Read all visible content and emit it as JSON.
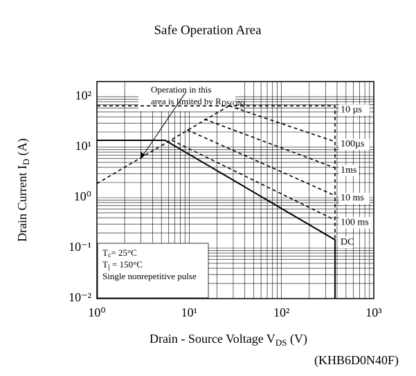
{
  "chart_data": {
    "type": "line",
    "title": "Safe Operation Area",
    "xlabel": [
      "Drain - Source Voltage V",
      "DS",
      " (V)"
    ],
    "ylabel": [
      "Drain Current I",
      "D",
      " (A)"
    ],
    "part_number": "(KHB6D0N40F)",
    "annotation": [
      "Operation in this",
      "area is limited by R",
      "DS(ON)"
    ],
    "notes": [
      [
        "T",
        "c",
        "= 25°C"
      ],
      [
        "T",
        "j",
        " = 150°C"
      ],
      [
        "Single nonrepetitive pulse"
      ]
    ],
    "xscale": "log",
    "yscale": "log",
    "xlim": [
      1,
      1000
    ],
    "ylim": [
      0.01,
      200
    ],
    "xticks": [
      {
        "value": 1,
        "label": "10⁰"
      },
      {
        "value": 10,
        "label": "10¹"
      },
      {
        "value": 100,
        "label": "10²"
      },
      {
        "value": 1000,
        "label": "10³"
      }
    ],
    "yticks": [
      {
        "value": 0.01,
        "label": "10⁻²"
      },
      {
        "value": 0.1,
        "label": "10⁻¹"
      },
      {
        "value": 1,
        "label": "10⁰"
      },
      {
        "value": 10,
        "label": "10¹"
      },
      {
        "value": 100,
        "label": "10²"
      }
    ],
    "grid": true,
    "color": "#000000",
    "limit_line": {
      "x": [
        1,
        27
      ],
      "y": [
        1.9,
        66
      ]
    },
    "series": [
      {
        "name": "10 µs",
        "dashed": true,
        "x": [
          1,
          380,
          380
        ],
        "values": [
          66,
          66,
          0.146
        ]
      },
      {
        "name": "100µs",
        "dashed": true,
        "x": [
          27,
          380
        ],
        "values": [
          66,
          12.9
        ]
      },
      {
        "name": "1ms",
        "dashed": true,
        "x": [
          14.6,
          380
        ],
        "values": [
          36,
          3.9
        ]
      },
      {
        "name": "10 ms",
        "dashed": true,
        "x": [
          9.5,
          380
        ],
        "values": [
          22,
          1.1
        ]
      },
      {
        "name": "100 ms",
        "dashed": true,
        "x": [
          6.5,
          380
        ],
        "values": [
          13.7,
          0.36
        ]
      },
      {
        "name": "DC",
        "dashed": false,
        "x": [
          1,
          5.5,
          380,
          380
        ],
        "values": [
          13.7,
          13.7,
          0.146,
          0.01
        ]
      }
    ]
  }
}
